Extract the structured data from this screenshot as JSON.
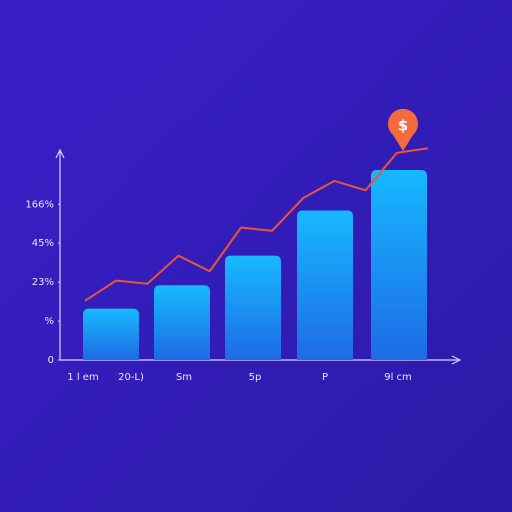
{
  "chart_data": {
    "type": "bar",
    "categories": [
      "1 l em",
      "20-L)",
      "Sm",
      "5p",
      "P",
      "9l cm"
    ],
    "bars": {
      "color": "#1aa8ff",
      "values": [
        null,
        33,
        48,
        67,
        96,
        122
      ]
    },
    "line": {
      "color": "#e8553a",
      "values": [
        38,
        51,
        49,
        67,
        57,
        85,
        83,
        104,
        115,
        109,
        133,
        136
      ]
    },
    "annotation": "$",
    "annotation_color": "#f26a3d",
    "ylim": [
      0,
      140
    ],
    "yticks": [
      0,
      {
        "value": 25,
        "label": "%"
      },
      {
        "value": 50,
        "label": "23%"
      },
      {
        "value": 75,
        "label": "45%"
      },
      {
        "value": 100,
        "label": "166%"
      }
    ]
  }
}
